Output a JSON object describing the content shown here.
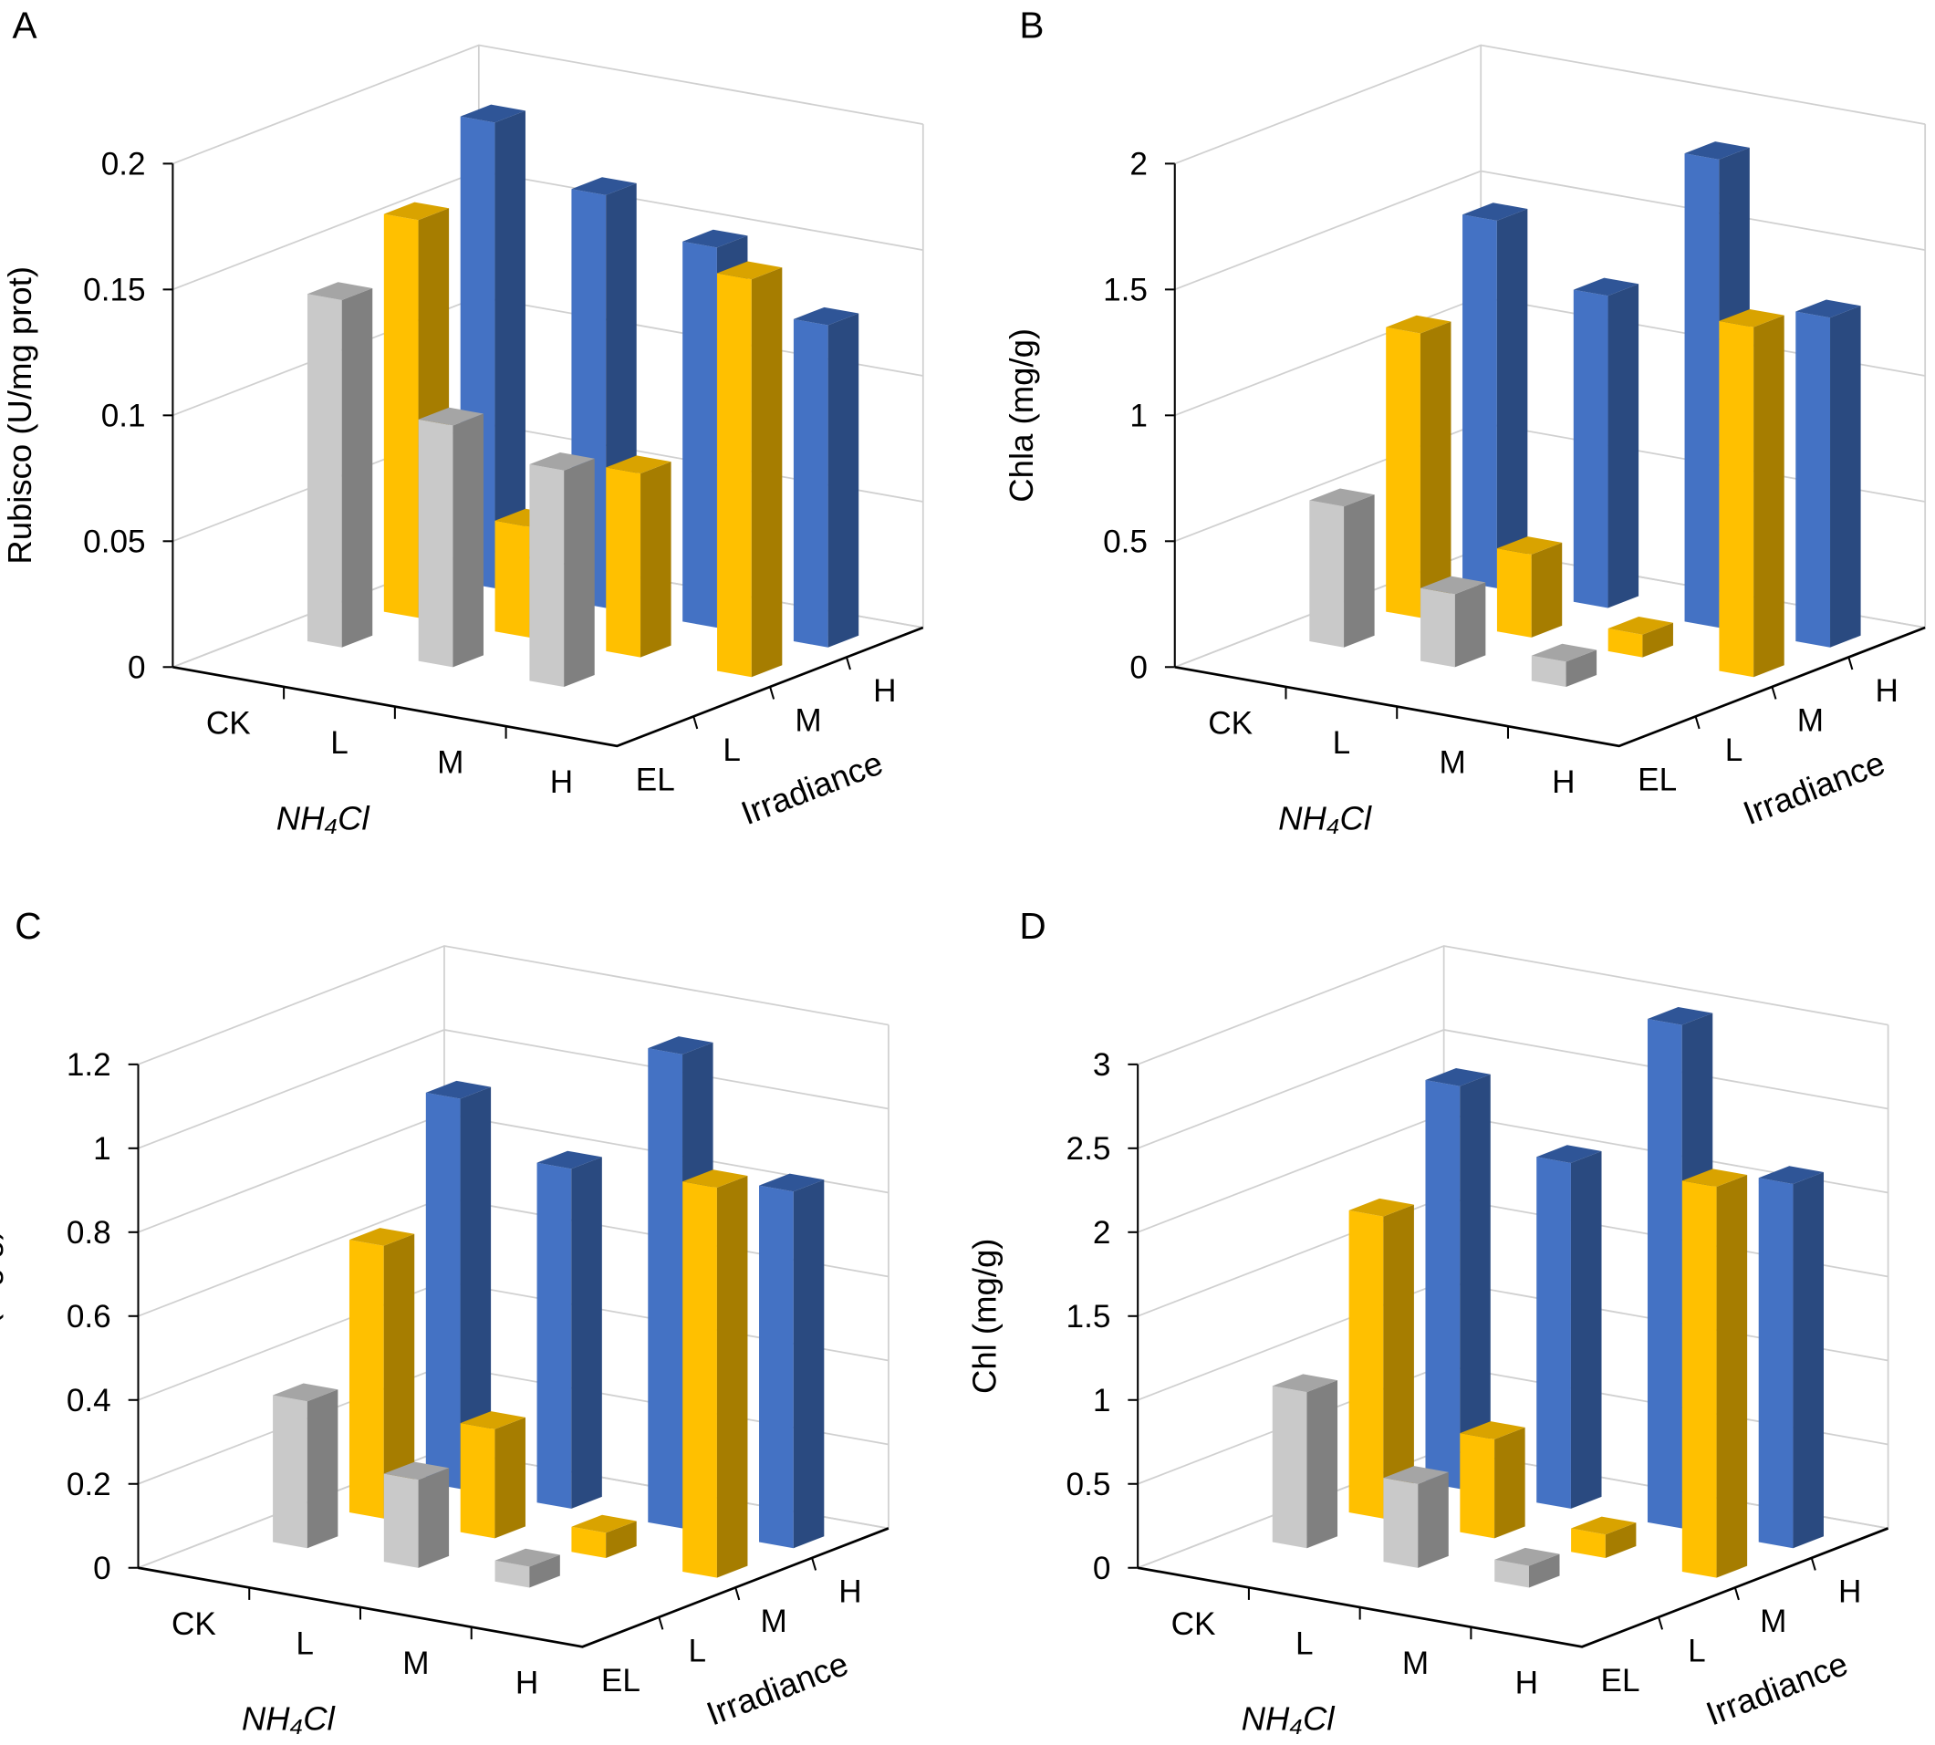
{
  "chart_data": [
    {
      "type": "bar3d",
      "panel": "A",
      "ylabel": "Rubisco (U/mg prot)",
      "xlabel": "NH₄Cl",
      "zlabel": "Irradiance",
      "x_categories": [
        "CK",
        "L",
        "M",
        "H"
      ],
      "z_categories": [
        "EL",
        "L",
        "M",
        "H"
      ],
      "ylim": [
        0,
        0.2
      ],
      "yticks": [
        "0",
        "0.05",
        "0.1",
        "0.15",
        "0.2"
      ],
      "series": [
        {
          "irradiance": "L",
          "color": "gray",
          "values": [
            0.138,
            0.096,
            0.086,
            null
          ]
        },
        {
          "irradiance": "M",
          "color": "yellow",
          "values": [
            0.158,
            0.044,
            0.073,
            0.158
          ]
        },
        {
          "irradiance": "H",
          "color": "blue",
          "values": [
            0.185,
            0.164,
            0.151,
            0.128
          ]
        }
      ]
    },
    {
      "type": "bar3d",
      "panel": "B",
      "ylabel": "Chla (mg/g)",
      "xlabel": "NH₄Cl",
      "zlabel": "Irradiance",
      "x_categories": [
        "CK",
        "L",
        "M",
        "H"
      ],
      "z_categories": [
        "EL",
        "L",
        "M",
        "H"
      ],
      "ylim": [
        0,
        2
      ],
      "yticks": [
        "0",
        "0.5",
        "1",
        "1.5",
        "2"
      ],
      "series": [
        {
          "irradiance": "L",
          "color": "gray",
          "values": [
            0.56,
            0.29,
            0.1,
            null
          ]
        },
        {
          "irradiance": "M",
          "color": "yellow",
          "values": [
            1.13,
            0.33,
            0.09,
            1.39
          ]
        },
        {
          "irradiance": "H",
          "color": "blue",
          "values": [
            1.46,
            1.24,
            1.86,
            1.31
          ]
        }
      ]
    },
    {
      "type": "bar3d",
      "panel": "C",
      "ylabel": "Chlb (mg/g)",
      "xlabel": "NH₄Cl",
      "zlabel": "Irradiance",
      "x_categories": [
        "CK",
        "L",
        "M",
        "H"
      ],
      "z_categories": [
        "EL",
        "L",
        "M",
        "H"
      ],
      "ylim": [
        0,
        1.2
      ],
      "yticks": [
        "0",
        "0.2",
        "0.4",
        "0.6",
        "0.8",
        "1",
        "1.2"
      ],
      "series": [
        {
          "irradiance": "L",
          "color": "gray",
          "values": [
            0.35,
            0.21,
            0.05,
            null
          ]
        },
        {
          "irradiance": "M",
          "color": "yellow",
          "values": [
            0.65,
            0.26,
            0.06,
            0.93
          ]
        },
        {
          "irradiance": "H",
          "color": "blue",
          "values": [
            0.93,
            0.81,
            1.13,
            0.85
          ]
        }
      ]
    },
    {
      "type": "bar3d",
      "panel": "D",
      "ylabel": "Chl (mg/g)",
      "xlabel": "NH₄Cl",
      "zlabel": "Irradiance",
      "x_categories": [
        "CK",
        "L",
        "M",
        "H"
      ],
      "z_categories": [
        "EL",
        "L",
        "M",
        "H"
      ],
      "ylim": [
        0,
        3
      ],
      "yticks": [
        "0",
        "0.5",
        "1",
        "1.5",
        "2",
        "2.5",
        "3"
      ],
      "series": [
        {
          "irradiance": "L",
          "color": "gray",
          "values": [
            0.93,
            0.5,
            0.13,
            null
          ]
        },
        {
          "irradiance": "M",
          "color": "yellow",
          "values": [
            1.8,
            0.59,
            0.14,
            2.33
          ]
        },
        {
          "irradiance": "H",
          "color": "blue",
          "values": [
            2.4,
            2.06,
            3.0,
            2.17
          ]
        }
      ]
    }
  ],
  "colors": {
    "gray": {
      "front": "#c9c9c9",
      "side": "#808080",
      "top": "#a5a5a5"
    },
    "yellow": {
      "front": "#ffc000",
      "side": "#a67d00",
      "top": "#d9a300"
    },
    "blue": {
      "front": "#4472c4",
      "side": "#2a4a80",
      "top": "#2f5597"
    }
  }
}
